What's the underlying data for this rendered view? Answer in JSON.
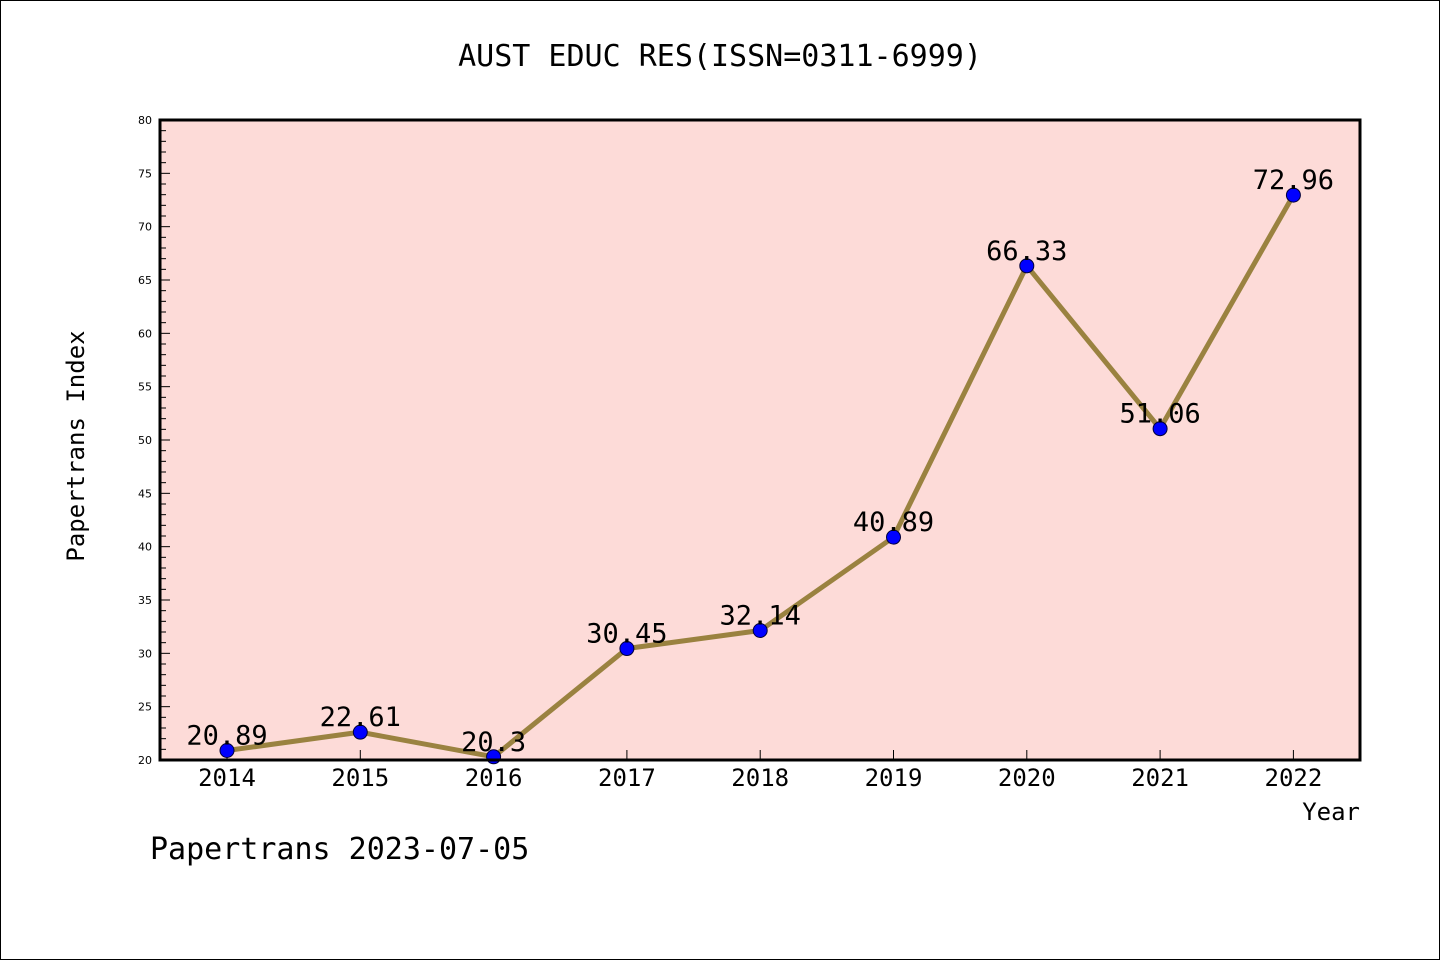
{
  "chart_data": {
    "type": "line",
    "title": "AUST EDUC RES(ISSN=0311-6999)",
    "xlabel": "Year",
    "ylabel": "Papertrans Index",
    "x": [
      "2014",
      "2015",
      "2016",
      "2017",
      "2018",
      "2019",
      "2020",
      "2021",
      "2022"
    ],
    "series": [
      {
        "values": [
          20.89,
          22.61,
          20.3,
          30.45,
          32.14,
          40.89,
          66.33,
          51.06,
          72.96
        ]
      }
    ],
    "data_labels": [
      "20.89",
      "22.61",
      "20.3",
      "30.45",
      "32.14",
      "40.89",
      "66.33",
      "51.06",
      "72.96"
    ],
    "ylim": [
      20,
      80
    ],
    "yticks": [
      20,
      25,
      30,
      35,
      40,
      45,
      50,
      55,
      60,
      65,
      70,
      75,
      80
    ],
    "grid": false,
    "legend": "none",
    "colors": {
      "plot_background": "#fddbd8",
      "line": "#9a8240",
      "marker": "#0000ff"
    }
  },
  "footer": "Papertrans 2023-07-05"
}
